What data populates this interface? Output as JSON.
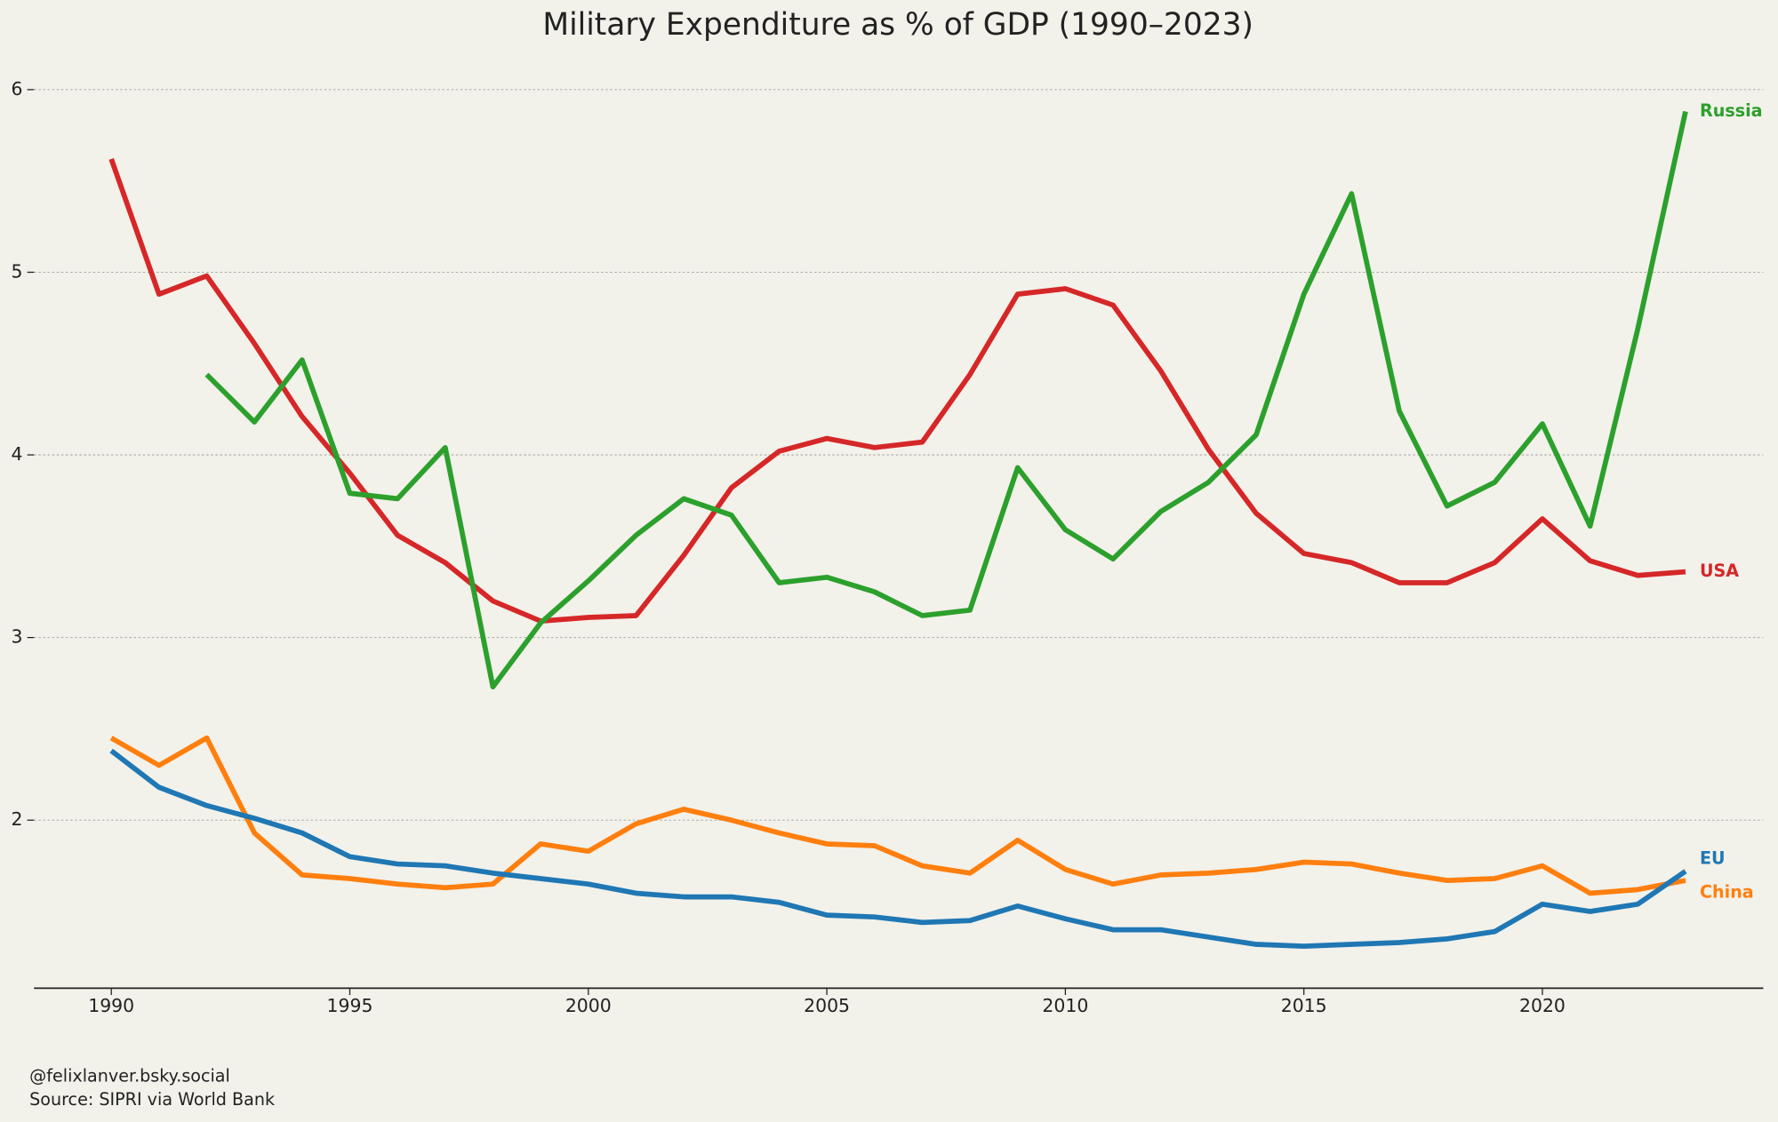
{
  "chart_data": {
    "type": "line",
    "title": "Military Expenditure as % of GDP (1990–2023)",
    "x": [
      1990,
      1991,
      1992,
      1993,
      1994,
      1995,
      1996,
      1997,
      1998,
      1999,
      2000,
      2001,
      2002,
      2003,
      2004,
      2005,
      2006,
      2007,
      2008,
      2009,
      2010,
      2011,
      2012,
      2013,
      2014,
      2015,
      2016,
      2017,
      2018,
      2019,
      2020,
      2021,
      2022,
      2023
    ],
    "series": [
      {
        "name": "USA",
        "color": "#d62728",
        "values": [
          5.62,
          4.88,
          4.98,
          4.61,
          4.21,
          3.9,
          3.56,
          3.41,
          3.2,
          3.09,
          3.11,
          3.12,
          3.45,
          3.82,
          4.02,
          4.09,
          4.04,
          4.07,
          4.44,
          4.88,
          4.91,
          4.82,
          4.46,
          4.03,
          3.68,
          3.46,
          3.41,
          3.3,
          3.3,
          3.41,
          3.65,
          3.42,
          3.34,
          3.36
        ]
      },
      {
        "name": "Russia",
        "color": "#2ca02c",
        "values": [
          null,
          null,
          4.44,
          4.18,
          4.52,
          3.79,
          3.76,
          4.04,
          2.73,
          3.08,
          3.31,
          3.56,
          3.76,
          3.67,
          3.3,
          3.33,
          3.25,
          3.12,
          3.15,
          3.93,
          3.59,
          3.43,
          3.69,
          3.85,
          4.11,
          4.88,
          5.43,
          4.24,
          3.72,
          3.85,
          4.17,
          3.61,
          4.69,
          5.88
        ]
      },
      {
        "name": "China",
        "color": "#ff7f0e",
        "values": [
          2.45,
          2.3,
          2.45,
          1.93,
          1.7,
          1.68,
          1.65,
          1.63,
          1.65,
          1.87,
          1.83,
          1.98,
          2.06,
          2.0,
          1.93,
          1.87,
          1.86,
          1.75,
          1.71,
          1.89,
          1.73,
          1.65,
          1.7,
          1.71,
          1.73,
          1.77,
          1.76,
          1.71,
          1.67,
          1.68,
          1.75,
          1.6,
          1.62,
          1.67
        ]
      },
      {
        "name": "EU",
        "color": "#1f77b4",
        "values": [
          2.38,
          2.18,
          2.08,
          2.01,
          1.93,
          1.8,
          1.76,
          1.75,
          1.71,
          1.68,
          1.65,
          1.6,
          1.58,
          1.58,
          1.55,
          1.48,
          1.47,
          1.44,
          1.45,
          1.53,
          1.46,
          1.4,
          1.4,
          1.36,
          1.32,
          1.31,
          1.32,
          1.33,
          1.35,
          1.39,
          1.54,
          1.5,
          1.54,
          1.72
        ]
      }
    ],
    "xlim": [
      1988.38,
      2024.63
    ],
    "xticks": [
      1990,
      1995,
      2000,
      2005,
      2010,
      2015,
      2020
    ],
    "ylim": [
      1.08,
      6.25
    ],
    "yticks": [
      2,
      3,
      4,
      5,
      6
    ],
    "grid": true,
    "footer": [
      "@felixlanver.bsky.social",
      "Source: SIPRI via World Bank"
    ]
  }
}
